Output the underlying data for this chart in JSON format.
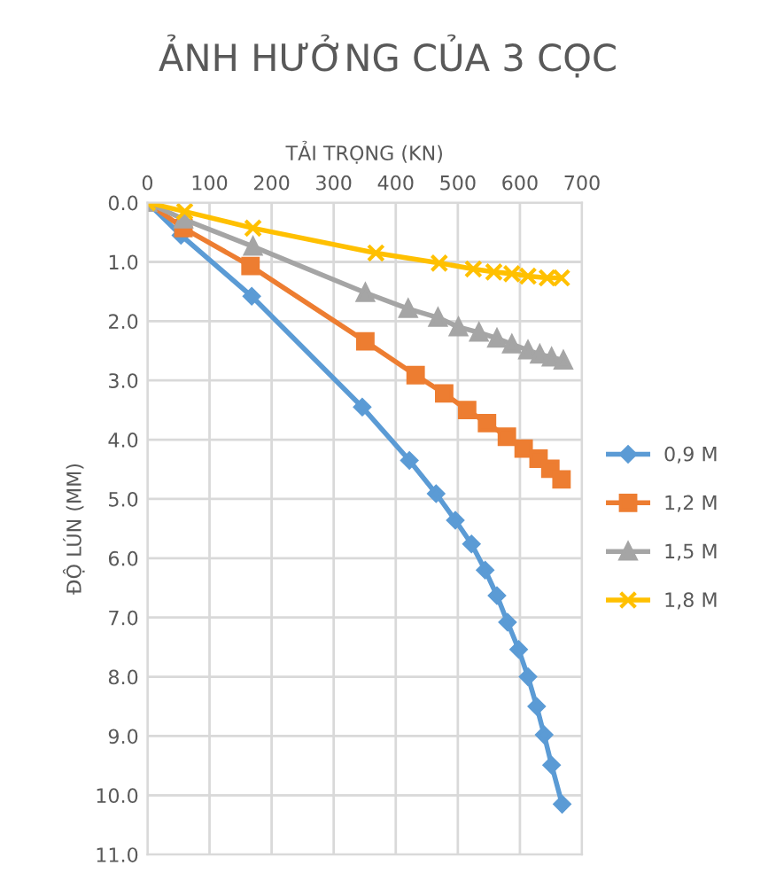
{
  "chart_data": {
    "type": "line",
    "title": "ẢNH HƯỞNG CỦA 3 CỌC",
    "xlabel": "TẢI TRỌNG (KN)",
    "ylabel": "ĐỘ LÚN (MM)",
    "xlim": [
      0,
      700
    ],
    "xticks": [
      0,
      100,
      200,
      300,
      400,
      500,
      600,
      700
    ],
    "ylim": [
      11,
      0
    ],
    "yticks": [
      {
        "value": 0,
        "label": "0.0"
      },
      {
        "value": 1,
        "label": "1.0"
      },
      {
        "value": 2,
        "label": "2.0"
      },
      {
        "value": 3,
        "label": "3.0"
      },
      {
        "value": 4,
        "label": "4.0"
      },
      {
        "value": 5,
        "label": "5.0"
      },
      {
        "value": 6,
        "label": "6.0"
      },
      {
        "value": 7,
        "label": "7.0"
      },
      {
        "value": 8,
        "label": "8.0"
      },
      {
        "value": 9,
        "label": "9.0"
      },
      {
        "value": 10,
        "label": "10.0"
      },
      {
        "value": 11,
        "label": "11.0"
      }
    ],
    "grid": true,
    "legend": "right",
    "line_style": "solid",
    "series": [
      {
        "name": "0,9 M",
        "color": "#5b9bd5",
        "marker": "diamond",
        "x": [
          0,
          54,
          168,
          346,
          422,
          465,
          496,
          522,
          544,
          563,
          580,
          598,
          613,
          627,
          639,
          651,
          668
        ],
        "values": [
          0,
          0.55,
          1.58,
          3.45,
          4.35,
          4.91,
          5.36,
          5.76,
          6.2,
          6.63,
          7.08,
          7.54,
          8.0,
          8.5,
          8.98,
          9.49,
          10.15
        ]
      },
      {
        "name": "1,2 M",
        "color": "#ed7d31",
        "marker": "square",
        "x": [
          0,
          58,
          166,
          351,
          432,
          478,
          515,
          547,
          579,
          606,
          630,
          649,
          667
        ],
        "values": [
          0,
          0.43,
          1.07,
          2.34,
          2.91,
          3.22,
          3.5,
          3.72,
          3.95,
          4.15,
          4.32,
          4.49,
          4.67
        ]
      },
      {
        "name": "1,5 M",
        "color": "#a5a5a5",
        "marker": "triangle",
        "x": [
          0,
          58,
          170,
          351,
          420,
          468,
          501,
          534,
          563,
          587,
          613,
          632,
          651,
          670
        ],
        "values": [
          0,
          0.28,
          0.74,
          1.52,
          1.79,
          1.94,
          2.1,
          2.19,
          2.29,
          2.39,
          2.49,
          2.56,
          2.61,
          2.66
        ]
      },
      {
        "name": "1,8 M",
        "color": "#ffc000",
        "marker": "cross",
        "x": [
          0,
          60,
          170,
          368,
          470,
          525,
          558,
          587,
          613,
          644,
          667
        ],
        "values": [
          0,
          0.15,
          0.43,
          0.85,
          1.02,
          1.12,
          1.17,
          1.2,
          1.24,
          1.27,
          1.27
        ]
      }
    ]
  }
}
